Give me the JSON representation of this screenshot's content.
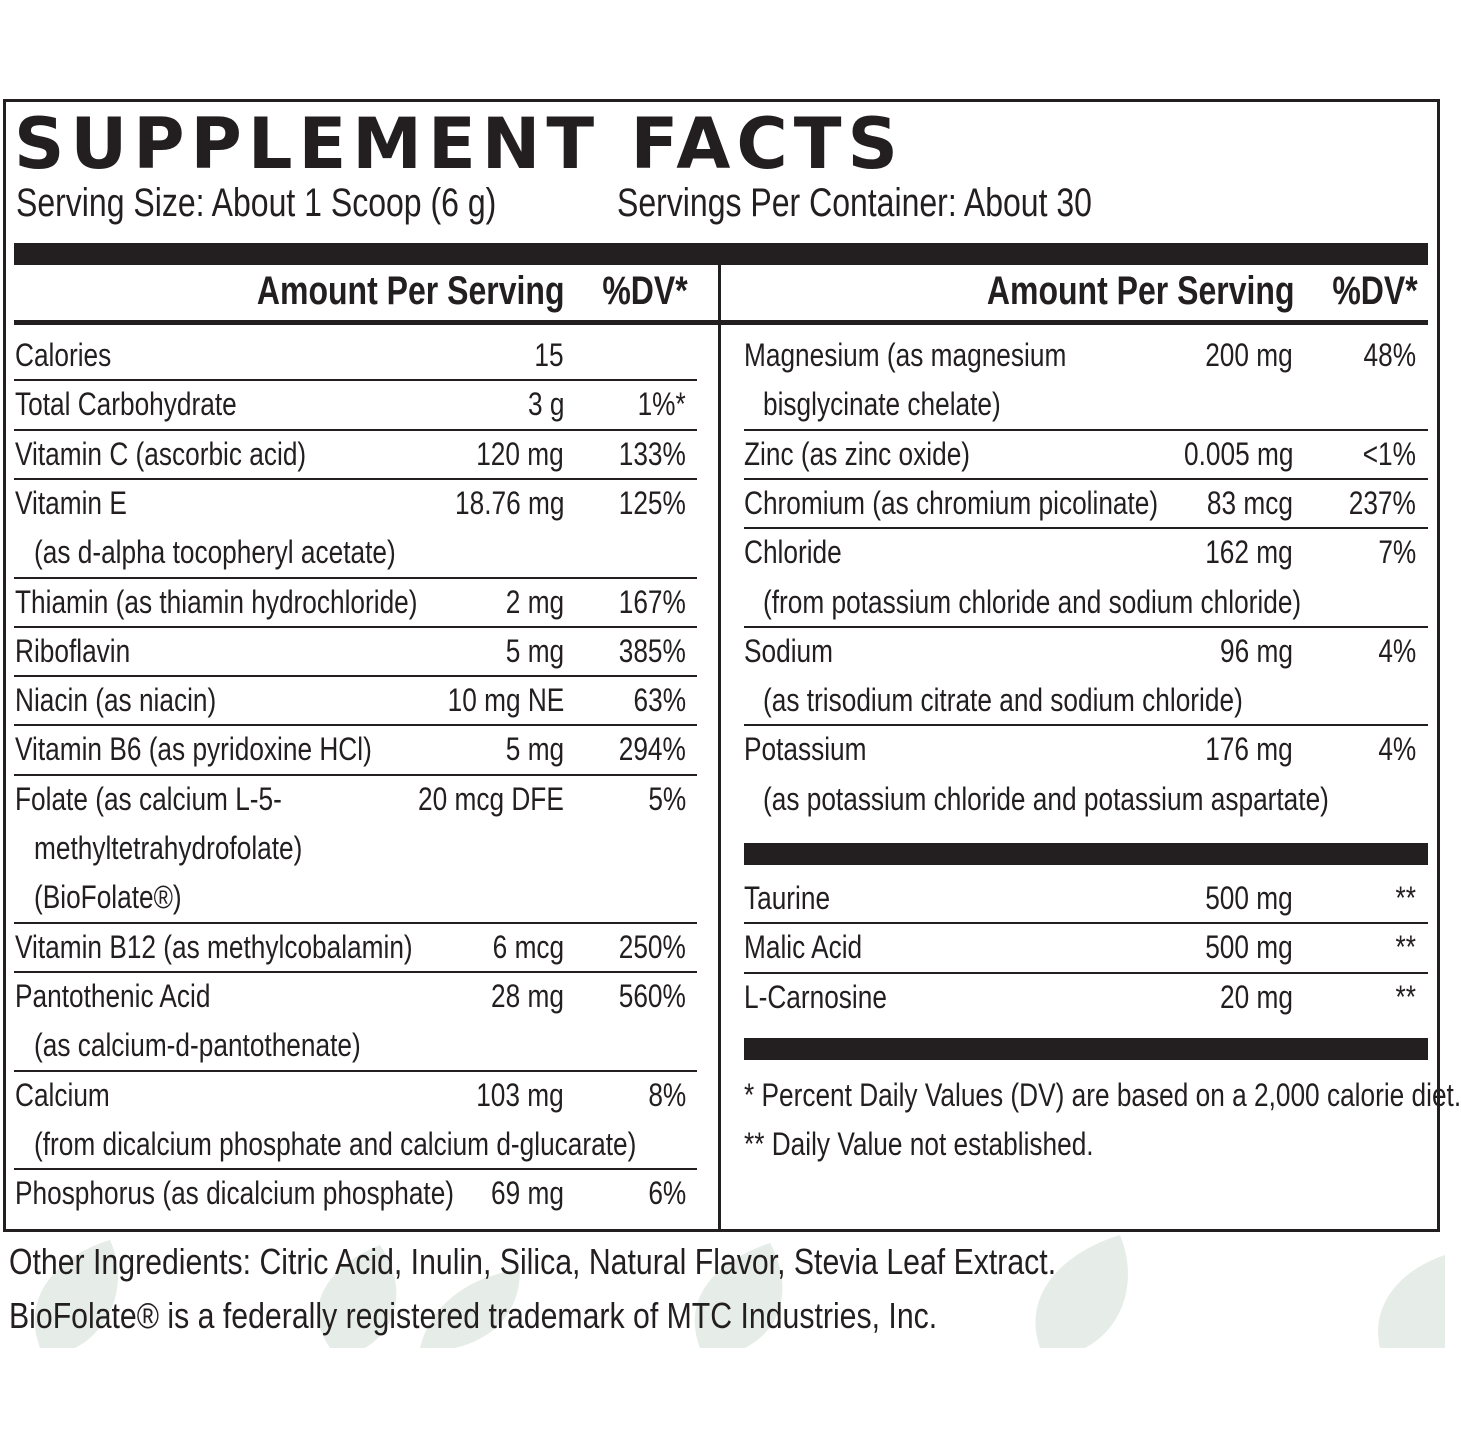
{
  "title": "SUPPLEMENT FACTS",
  "serving_size": "Serving Size:  About 1 Scoop (6 g)",
  "servings_per_container": "Servings Per Container: About 30",
  "left_header": {
    "amount": "Amount Per Serving",
    "dv": "%DV*"
  },
  "right_header": {
    "amount": "Amount Per Serving",
    "dv": "%DV*"
  },
  "left_rows": [
    {
      "lines": [
        "Calories"
      ],
      "amount": "15",
      "dv": ""
    },
    {
      "lines": [
        "Total Carbohydrate"
      ],
      "amount": "3 g",
      "dv": "1%*"
    },
    {
      "lines": [
        "Vitamin C (ascorbic acid)"
      ],
      "amount": "120 mg",
      "dv": "133%"
    },
    {
      "lines": [
        "Vitamin E",
        "(as d-alpha tocopheryl acetate)"
      ],
      "amount": "18.76 mg",
      "dv": "125%"
    },
    {
      "lines": [
        "Thiamin (as thiamin hydrochloride)"
      ],
      "amount": "2 mg",
      "dv": "167%"
    },
    {
      "lines": [
        "Riboflavin"
      ],
      "amount": "5 mg",
      "dv": "385%"
    },
    {
      "lines": [
        "Niacin (as niacin)"
      ],
      "amount": "10 mg NE",
      "dv": "63%"
    },
    {
      "lines": [
        "Vitamin B6 (as pyridoxine HCl)"
      ],
      "amount": "5 mg",
      "dv": "294%"
    },
    {
      "lines": [
        "Folate (as calcium L-5-",
        "methyltetrahydrofolate)",
        "(BioFolate®)"
      ],
      "amount": "20 mcg DFE",
      "dv": "5%"
    },
    {
      "lines": [
        "Vitamin B12 (as methylcobalamin)"
      ],
      "amount": "6 mcg",
      "dv": "250%"
    },
    {
      "lines": [
        "Pantothenic Acid",
        "(as calcium-d-pantothenate)"
      ],
      "amount": "28 mg",
      "dv": "560%"
    },
    {
      "lines": [
        "Calcium",
        "(from dicalcium phosphate and calcium d-glucarate)"
      ],
      "amount": "103 mg",
      "dv": "8%"
    },
    {
      "lines": [
        "Phosphorus (as dicalcium phosphate)"
      ],
      "amount": "69 mg",
      "dv": "6%"
    }
  ],
  "right_rows": [
    {
      "lines": [
        "Magnesium (as magnesium",
        "bisglycinate chelate)"
      ],
      "amount": "200 mg",
      "dv": "48%"
    },
    {
      "lines": [
        "Zinc (as zinc oxide)"
      ],
      "amount": "0.005 mg",
      "dv": "<1%"
    },
    {
      "lines": [
        "Chromium (as chromium picolinate)"
      ],
      "amount": "83 mcg",
      "dv": "237%"
    },
    {
      "lines": [
        "Chloride",
        "(from potassium chloride and sodium chloride)"
      ],
      "amount": "162 mg",
      "dv": "7%"
    },
    {
      "lines": [
        "Sodium",
        "(as trisodium citrate and sodium chloride)"
      ],
      "amount": "96 mg",
      "dv": "4%"
    },
    {
      "lines": [
        "Potassium",
        "(as potassium chloride and potassium aspartate)"
      ],
      "amount": "176 mg",
      "dv": "4%"
    }
  ],
  "right_rows_2": [
    {
      "lines": [
        "Taurine"
      ],
      "amount": "500 mg",
      "dv": "**"
    },
    {
      "lines": [
        "Malic Acid"
      ],
      "amount": "500 mg",
      "dv": "**"
    },
    {
      "lines": [
        "L-Carnosine"
      ],
      "amount": "20 mg",
      "dv": "**"
    }
  ],
  "footnotes": [
    "* Percent Daily Values (DV) are based on a 2,000 calorie diet.",
    "** Daily Value not established."
  ],
  "other_ingredients": "Other Ingredients: Citric Acid, Inulin, Silica, Natural Flavor, Stevia Leaf Extract.",
  "trademark": "BioFolate® is a federally registered trademark of MTC Industries, Inc.",
  "colors": {
    "ink": "#231f20",
    "leaf": "#e6ece7"
  }
}
